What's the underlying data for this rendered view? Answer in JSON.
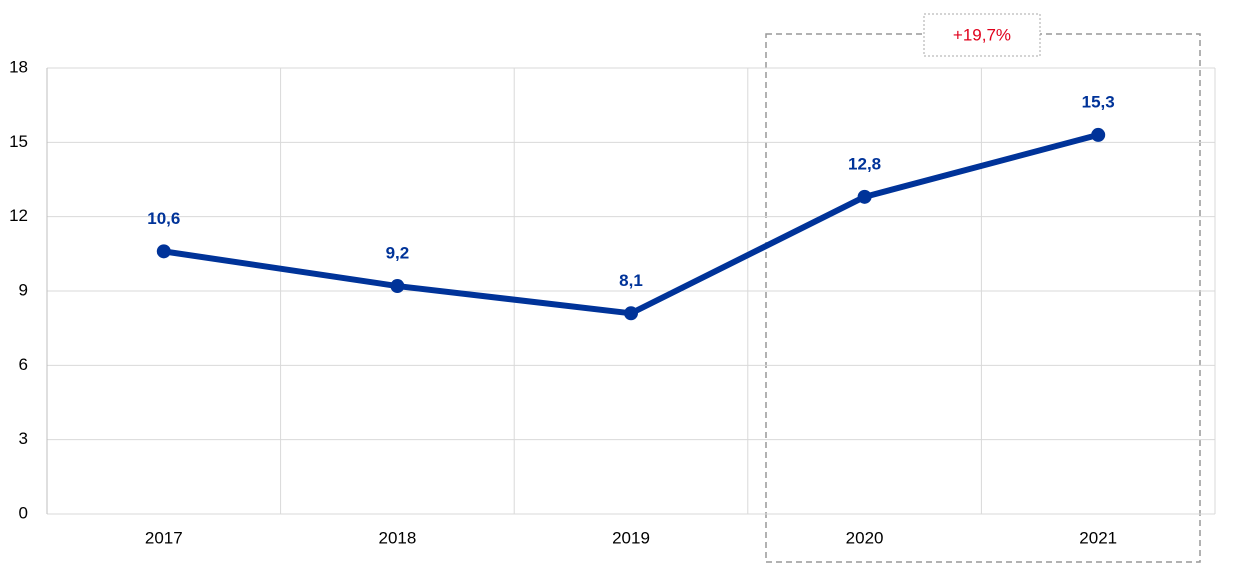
{
  "chart_data": {
    "type": "line",
    "categories": [
      "2017",
      "2018",
      "2019",
      "2020",
      "2021"
    ],
    "series": [
      {
        "color": "#003399",
        "values": [
          10.6,
          9.2,
          8.1,
          12.8,
          15.3
        ],
        "value_labels": [
          "10,6",
          "9,2",
          "8,1",
          "12,8",
          "15,3"
        ]
      }
    ],
    "ylim": [
      0,
      18
    ],
    "yticks": [
      0,
      3,
      6,
      9,
      12,
      15,
      18
    ],
    "grid": true,
    "annotation": "+19,7%",
    "annotation_color": "#e0001b"
  }
}
